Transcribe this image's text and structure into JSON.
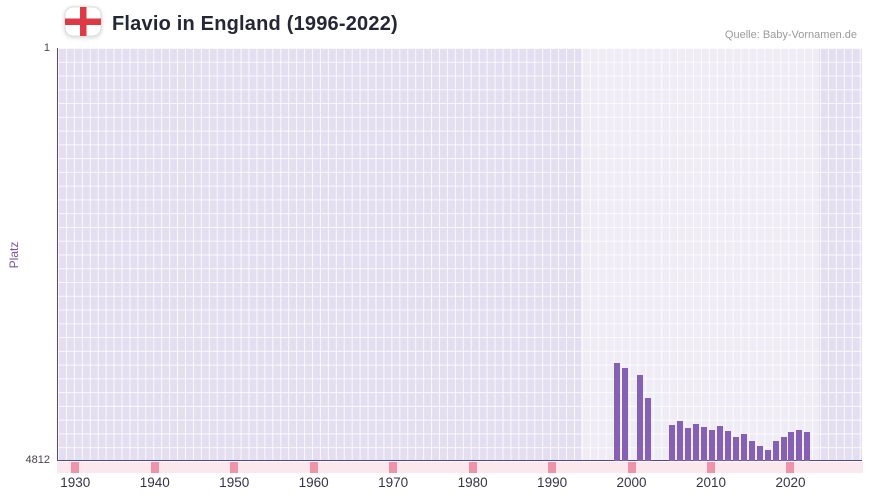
{
  "header": {
    "title": "Flavio in England (1996-2022)",
    "source": "Quelle: Baby-Vornamen.de"
  },
  "chart_data": {
    "type": "bar",
    "title": "Flavio in England (1996-2022)",
    "xlabel": "",
    "ylabel": "Platz",
    "y_axis_top_label": "1",
    "y_axis_bottom_label": "4812",
    "y_min": 1,
    "y_max": 4812,
    "y_inverted": true,
    "x_range": [
      1927.7,
      2029
    ],
    "x_ticks": [
      1930,
      1940,
      1950,
      1960,
      1970,
      1980,
      1990,
      2000,
      2010,
      2020
    ],
    "highlight_band": [
      1993.5,
      2023.5
    ],
    "grid": true,
    "legend": false,
    "colors": {
      "bar": "#8560b5",
      "plot_background": "#e3dff0",
      "highlight_band": "rgba(255,255,255,0.42)",
      "axis_line": "#5c4198",
      "tick_strip": "#fbe7ee",
      "tick_mark": "#ef93ab",
      "y_axis_label": "#7b52ab"
    },
    "series": [
      {
        "name": "Platz",
        "points": [
          {
            "year": 1998,
            "rank": 3670
          },
          {
            "year": 1999,
            "rank": 3730
          },
          {
            "year": 2001,
            "rank": 3810
          },
          {
            "year": 2002,
            "rank": 4080
          },
          {
            "year": 2005,
            "rank": 4390
          },
          {
            "year": 2006,
            "rank": 4350
          },
          {
            "year": 2007,
            "rank": 4430
          },
          {
            "year": 2008,
            "rank": 4380
          },
          {
            "year": 2009,
            "rank": 4420
          },
          {
            "year": 2010,
            "rank": 4450
          },
          {
            "year": 2011,
            "rank": 4410
          },
          {
            "year": 2012,
            "rank": 4460
          },
          {
            "year": 2013,
            "rank": 4530
          },
          {
            "year": 2014,
            "rank": 4500
          },
          {
            "year": 2015,
            "rank": 4580
          },
          {
            "year": 2016,
            "rank": 4640
          },
          {
            "year": 2017,
            "rank": 4680
          },
          {
            "year": 2018,
            "rank": 4580
          },
          {
            "year": 2019,
            "rank": 4530
          },
          {
            "year": 2020,
            "rank": 4470
          },
          {
            "year": 2021,
            "rank": 4450
          },
          {
            "year": 2022,
            "rank": 4470
          }
        ]
      }
    ]
  }
}
